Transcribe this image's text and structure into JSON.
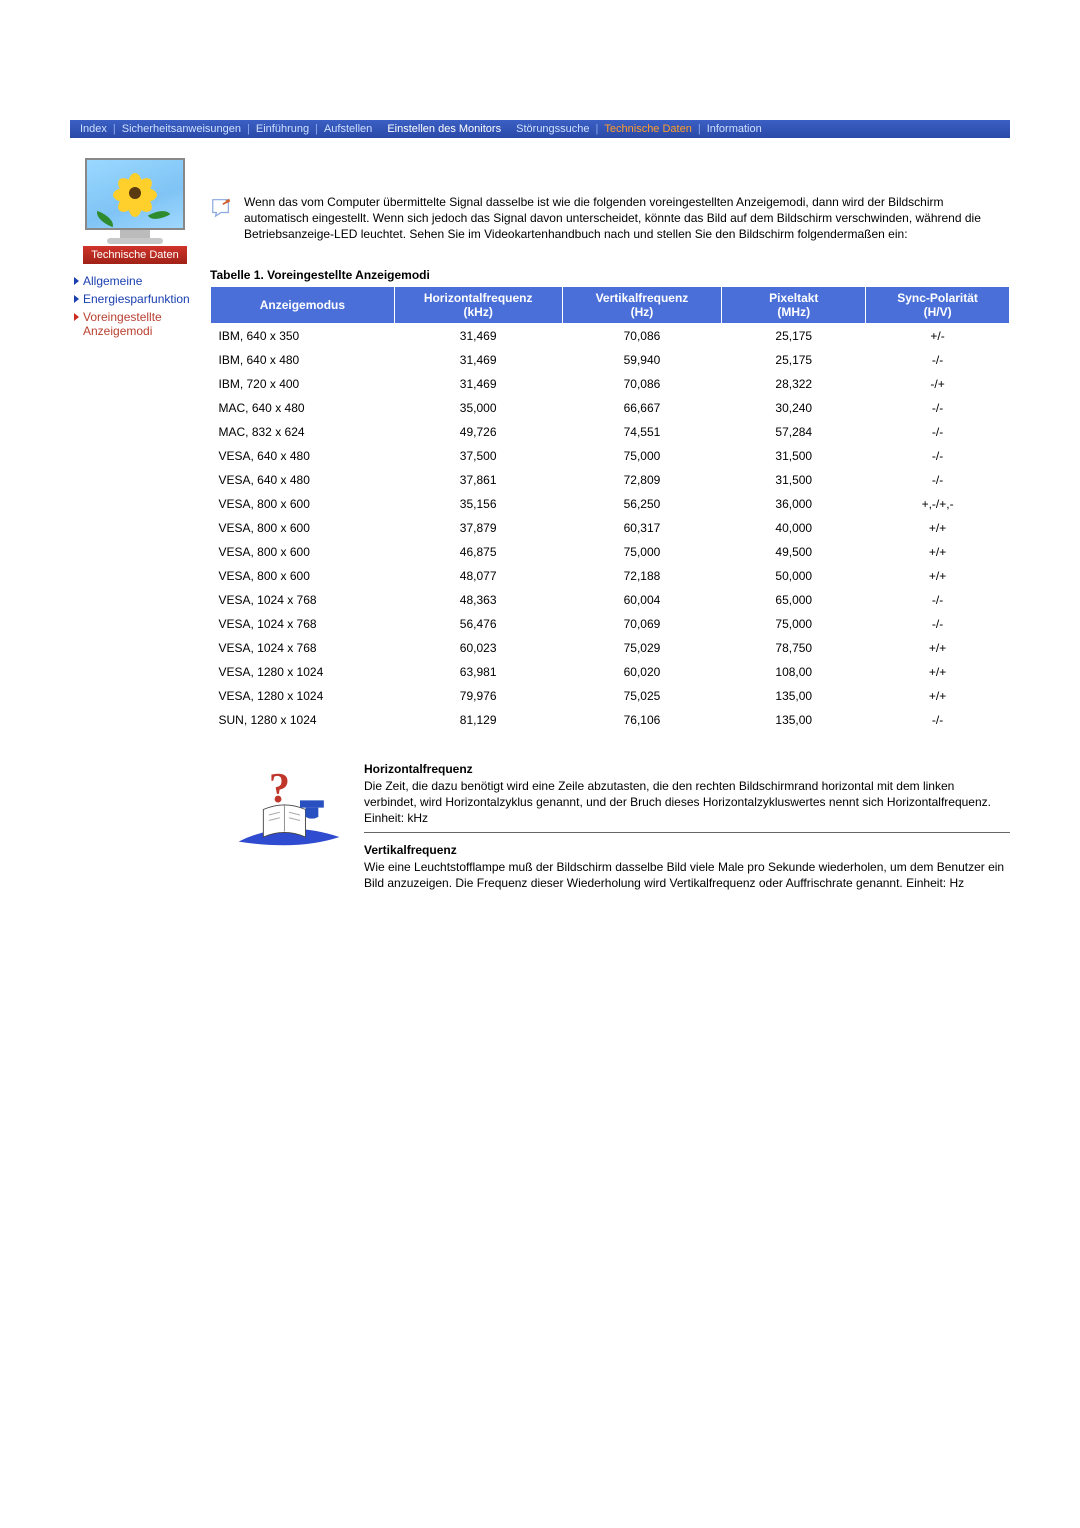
{
  "nav": {
    "items": [
      {
        "label": "Index"
      },
      {
        "label": "Sicherheitsanweisungen"
      },
      {
        "label": "Einführung"
      },
      {
        "label": "Aufstellen"
      },
      {
        "label": "Einstellen des Monitors"
      },
      {
        "label": "Störungssuche"
      },
      {
        "label": "Technische Daten"
      },
      {
        "label": "Information"
      }
    ]
  },
  "sidebar": {
    "caption": "Technische Daten",
    "links": [
      {
        "label": "Allgemeine"
      },
      {
        "label": "Energiesparfunktion"
      },
      {
        "label": "Voreingestellte Anzeigemodi"
      }
    ]
  },
  "intro": "Wenn das vom Computer übermittelte Signal dasselbe ist wie die folgenden voreingestellten Anzeigemodi, dann wird der Bildschirm automatisch eingestellt. Wenn sich jedoch das Signal davon unterscheidet, könnte das Bild auf dem Bildschirm verschwinden, während die Betriebsanzeige-LED leuchtet. Sehen Sie im Videokartenhandbuch nach und stellen Sie den Bildschirm folgendermaßen ein:",
  "table": {
    "title": "Tabelle 1. Voreingestellte Anzeigemodi",
    "headers": {
      "mode": "Anzeigemodus",
      "hfreq_l1": "Horizontalfrequenz",
      "hfreq_l2": "(kHz)",
      "vfreq_l1": "Vertikalfrequenz",
      "vfreq_l2": "(Hz)",
      "pix_l1": "Pixeltakt",
      "pix_l2": "(MHz)",
      "pol_l1": "Sync-Polarität",
      "pol_l2": "(H/V)"
    },
    "rows": [
      {
        "mode": "IBM, 640 x 350",
        "h": "31,469",
        "v": "70,086",
        "p": "25,175",
        "pol": "+/-"
      },
      {
        "mode": "IBM, 640 x 480",
        "h": "31,469",
        "v": "59,940",
        "p": "25,175",
        "pol": "-/-"
      },
      {
        "mode": "IBM, 720 x 400",
        "h": "31,469",
        "v": "70,086",
        "p": "28,322",
        "pol": "-/+"
      },
      {
        "mode": "MAC, 640 x 480",
        "h": "35,000",
        "v": "66,667",
        "p": "30,240",
        "pol": "-/-"
      },
      {
        "mode": "MAC, 832 x 624",
        "h": "49,726",
        "v": "74,551",
        "p": "57,284",
        "pol": "-/-"
      },
      {
        "mode": "VESA, 640 x 480",
        "h": "37,500",
        "v": "75,000",
        "p": "31,500",
        "pol": "-/-"
      },
      {
        "mode": "VESA, 640 x 480",
        "h": "37,861",
        "v": "72,809",
        "p": "31,500",
        "pol": "-/-"
      },
      {
        "mode": "VESA, 800 x 600",
        "h": "35,156",
        "v": "56,250",
        "p": "36,000",
        "pol": "+,-/+,-"
      },
      {
        "mode": "VESA, 800 x 600",
        "h": "37,879",
        "v": "60,317",
        "p": "40,000",
        "pol": "+/+"
      },
      {
        "mode": "VESA, 800 x 600",
        "h": "46,875",
        "v": "75,000",
        "p": "49,500",
        "pol": "+/+"
      },
      {
        "mode": "VESA, 800 x 600",
        "h": "48,077",
        "v": "72,188",
        "p": "50,000",
        "pol": "+/+"
      },
      {
        "mode": "VESA, 1024 x 768",
        "h": "48,363",
        "v": "60,004",
        "p": "65,000",
        "pol": "-/-"
      },
      {
        "mode": "VESA, 1024 x 768",
        "h": "56,476",
        "v": "70,069",
        "p": "75,000",
        "pol": "-/-"
      },
      {
        "mode": "VESA, 1024 x 768",
        "h": "60,023",
        "v": "75,029",
        "p": "78,750",
        "pol": "+/+"
      },
      {
        "mode": "VESA, 1280 x 1024",
        "h": "63,981",
        "v": "60,020",
        "p": "108,00",
        "pol": "+/+"
      },
      {
        "mode": "VESA, 1280 x 1024",
        "h": "79,976",
        "v": "75,025",
        "p": "135,00",
        "pol": "+/+"
      },
      {
        "mode": "SUN, 1280 x 1024",
        "h": "81,129",
        "v": "76,106",
        "p": "135,00",
        "pol": "-/-"
      }
    ]
  },
  "foot": {
    "h_title": "Horizontalfrequenz",
    "h_body": "Die Zeit, die dazu benötigt wird eine Zeile abzutasten, die den rechten Bildschirmrand horizontal mit dem linken verbindet, wird Horizontalzyklus genannt, und der Bruch dieses Horizontalzykluswertes nennt sich Horizontalfrequenz. Einheit: kHz",
    "v_title": "Vertikalfrequenz",
    "v_body": "Wie eine Leuchtstofflampe muß der Bildschirm dasselbe Bild viele Male pro Sekunde wiederholen, um dem Benutzer ein Bild anzuzeigen. Die Frequenz dieser Wiederholung wird Vertikalfrequenz oder Auffrischrate genannt. Einheit: Hz"
  },
  "style": {
    "nav_bg_top": "#3b5fc4",
    "nav_bg_bottom": "#2a4aa8",
    "nav_text": "#cfe0ff",
    "nav_sep": "#8faaee",
    "nav_orange": "#ff9d2a",
    "th_bg": "#4a6fd8",
    "th_fg": "#ffffff",
    "link_blue": "#1a3fb0",
    "link_red": "#b84030",
    "caption_bg_top": "#d0332a",
    "caption_bg_bottom": "#a02218",
    "body_font_size": 12
  }
}
